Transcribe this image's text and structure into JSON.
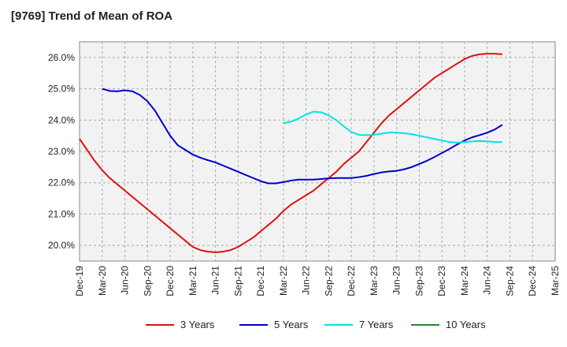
{
  "title": "[9769]  Trend of Mean of ROA",
  "chart_data": {
    "type": "line",
    "title": "[9769]  Trend of Mean of ROA",
    "xlabel": "",
    "ylabel": "",
    "ylim": [
      19.5,
      26.5
    ],
    "y_ticks": [
      {
        "value": 20.0,
        "label": "20.0%"
      },
      {
        "value": 21.0,
        "label": "21.0%"
      },
      {
        "value": 22.0,
        "label": "22.0%"
      },
      {
        "value": 23.0,
        "label": "23.0%"
      },
      {
        "value": 24.0,
        "label": "24.0%"
      },
      {
        "value": 25.0,
        "label": "25.0%"
      },
      {
        "value": 26.0,
        "label": "26.0%"
      }
    ],
    "x_tick_labels": [
      "Dec-19",
      "Mar-20",
      "Jun-20",
      "Sep-20",
      "Dec-20",
      "Mar-21",
      "Jun-21",
      "Sep-21",
      "Dec-21",
      "Mar-22",
      "Jun-22",
      "Sep-22",
      "Dec-22",
      "Mar-23",
      "Jun-23",
      "Sep-23",
      "Dec-23",
      "Mar-24",
      "Jun-24",
      "Sep-24",
      "Dec-24",
      "Mar-25"
    ],
    "x_months": [
      "Dec-19",
      "Jan-20",
      "Feb-20",
      "Mar-20",
      "Apr-20",
      "May-20",
      "Jun-20",
      "Jul-20",
      "Aug-20",
      "Sep-20",
      "Oct-20",
      "Nov-20",
      "Dec-20",
      "Jan-21",
      "Feb-21",
      "Mar-21",
      "Apr-21",
      "May-21",
      "Jun-21",
      "Jul-21",
      "Aug-21",
      "Sep-21",
      "Oct-21",
      "Nov-21",
      "Dec-21",
      "Jan-22",
      "Feb-22",
      "Mar-22",
      "Apr-22",
      "May-22",
      "Jun-22",
      "Jul-22",
      "Aug-22",
      "Sep-22",
      "Oct-22",
      "Nov-22",
      "Dec-22",
      "Jan-23",
      "Feb-23",
      "Mar-23",
      "Apr-23",
      "May-23",
      "Jun-23",
      "Jul-23",
      "Aug-23",
      "Sep-23",
      "Oct-23",
      "Nov-23",
      "Dec-23",
      "Jan-24",
      "Feb-24",
      "Mar-24",
      "Apr-24",
      "May-24",
      "Jun-24",
      "Jul-24",
      "Aug-24",
      "Sep-24",
      "Oct-24",
      "Nov-24",
      "Dec-24",
      "Jan-25",
      "Feb-25",
      "Mar-25"
    ],
    "grid": true,
    "grid_style": "dashed",
    "legend_position": "bottom",
    "series": [
      {
        "name": "3 Years",
        "color": "#dd1111",
        "start": "Dec-19",
        "values": [
          23.4,
          23.05,
          22.7,
          22.4,
          22.15,
          21.95,
          21.75,
          21.55,
          21.35,
          21.15,
          20.95,
          20.75,
          20.55,
          20.35,
          20.15,
          19.95,
          19.85,
          19.8,
          19.78,
          19.8,
          19.85,
          19.95,
          20.1,
          20.25,
          20.45,
          20.65,
          20.85,
          21.1,
          21.3,
          21.45,
          21.6,
          21.75,
          21.95,
          22.15,
          22.35,
          22.6,
          22.8,
          23.0,
          23.3,
          23.6,
          23.9,
          24.15,
          24.35,
          24.55,
          24.75,
          24.95,
          25.15,
          25.35,
          25.5,
          25.65,
          25.8,
          25.95,
          26.05,
          26.1,
          26.12,
          26.12,
          26.1
        ]
      },
      {
        "name": "5 Years",
        "color": "#0000cc",
        "start": "Mar-20",
        "values": [
          25.0,
          24.93,
          24.92,
          24.95,
          24.92,
          24.8,
          24.6,
          24.3,
          23.9,
          23.5,
          23.2,
          23.05,
          22.9,
          22.8,
          22.72,
          22.65,
          22.55,
          22.45,
          22.35,
          22.25,
          22.15,
          22.05,
          21.98,
          21.98,
          22.02,
          22.07,
          22.1,
          22.1,
          22.1,
          22.12,
          22.14,
          22.15,
          22.15,
          22.15,
          22.18,
          22.22,
          22.28,
          22.33,
          22.36,
          22.38,
          22.43,
          22.5,
          22.6,
          22.7,
          22.82,
          22.95,
          23.08,
          23.22,
          23.35,
          23.45,
          23.52,
          23.6,
          23.7,
          23.85
        ]
      },
      {
        "name": "7 Years",
        "color": "#00e5e5",
        "start": "Mar-22",
        "values": [
          23.9,
          23.95,
          24.05,
          24.18,
          24.27,
          24.25,
          24.15,
          24.0,
          23.8,
          23.62,
          23.53,
          23.52,
          23.53,
          23.57,
          23.6,
          23.6,
          23.58,
          23.55,
          23.5,
          23.45,
          23.4,
          23.35,
          23.3,
          23.28,
          23.3,
          23.32,
          23.33,
          23.32,
          23.3,
          23.3
        ]
      },
      {
        "name": "10 Years",
        "color": "#228822",
        "start": "Mar-25",
        "values": []
      }
    ]
  }
}
